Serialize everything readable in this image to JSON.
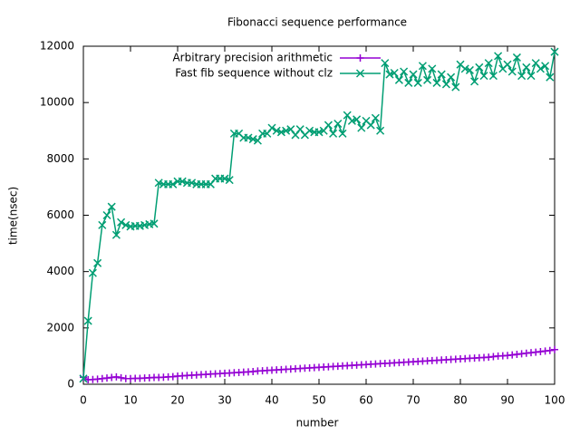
{
  "chart_data": {
    "type": "line",
    "title": "Fibonacci sequence performance",
    "x_label": "number",
    "y_label": "time(nsec)",
    "x": [
      0,
      1,
      2,
      3,
      4,
      5,
      6,
      7,
      8,
      9,
      10,
      11,
      12,
      13,
      14,
      15,
      16,
      17,
      18,
      19,
      20,
      21,
      22,
      23,
      24,
      25,
      26,
      27,
      28,
      29,
      30,
      31,
      32,
      33,
      34,
      35,
      36,
      37,
      38,
      39,
      40,
      41,
      42,
      43,
      44,
      45,
      46,
      47,
      48,
      49,
      50,
      51,
      52,
      53,
      54,
      55,
      56,
      57,
      58,
      59,
      60,
      61,
      62,
      63,
      64,
      65,
      66,
      67,
      68,
      69,
      70,
      71,
      72,
      73,
      74,
      75,
      76,
      77,
      78,
      79,
      80,
      81,
      82,
      83,
      84,
      85,
      86,
      87,
      88,
      89,
      90,
      91,
      92,
      93,
      94,
      95,
      96,
      97,
      98,
      99,
      100
    ],
    "series": [
      {
        "name": "Arbitrary precision arithmetic",
        "color": "#9400d3",
        "marker": "plus",
        "values": [
          250,
          160,
          170,
          180,
          200,
          220,
          240,
          260,
          230,
          200,
          200,
          210,
          210,
          220,
          230,
          240,
          240,
          250,
          260,
          270,
          290,
          300,
          310,
          320,
          330,
          340,
          350,
          360,
          370,
          380,
          390,
          400,
          410,
          420,
          430,
          440,
          450,
          470,
          480,
          490,
          500,
          510,
          520,
          530,
          540,
          550,
          560,
          570,
          580,
          590,
          600,
          610,
          620,
          630,
          640,
          650,
          660,
          670,
          680,
          690,
          700,
          710,
          720,
          730,
          740,
          750,
          760,
          770,
          780,
          790,
          800,
          810,
          820,
          830,
          840,
          850,
          860,
          870,
          880,
          890,
          900,
          910,
          920,
          930,
          940,
          950,
          960,
          980,
          1000,
          1010,
          1020,
          1040,
          1060,
          1080,
          1100,
          1120,
          1140,
          1160,
          1180,
          1200,
          1230
        ]
      },
      {
        "name": "Fast fib sequence without clz",
        "color": "#009e73",
        "marker": "cross",
        "values": [
          200,
          2250,
          3950,
          4300,
          5650,
          6000,
          6300,
          5300,
          5750,
          5650,
          5600,
          5620,
          5620,
          5650,
          5680,
          5700,
          7150,
          7100,
          7100,
          7100,
          7200,
          7200,
          7150,
          7150,
          7100,
          7100,
          7100,
          7100,
          7300,
          7300,
          7300,
          7250,
          8900,
          8900,
          8750,
          8750,
          8700,
          8650,
          8900,
          8900,
          9100,
          9000,
          8950,
          9000,
          9050,
          8850,
          9050,
          8850,
          9000,
          8950,
          8950,
          9000,
          9200,
          8900,
          9250,
          8900,
          9550,
          9350,
          9400,
          9100,
          9350,
          9200,
          9450,
          9000,
          11400,
          11000,
          11050,
          10800,
          11100,
          10700,
          11000,
          10700,
          11300,
          10800,
          11200,
          10700,
          11000,
          10650,
          10900,
          10550,
          11350,
          11200,
          11150,
          10750,
          11250,
          10950,
          11400,
          10950,
          11650,
          11200,
          11350,
          11100,
          11600,
          10950,
          11250,
          10950,
          11400,
          11200,
          11300,
          10900,
          11800
        ]
      }
    ],
    "xlim": [
      0,
      100
    ],
    "xticks": [
      0,
      10,
      20,
      30,
      40,
      50,
      60,
      70,
      80,
      90,
      100
    ],
    "ylim": [
      0,
      12000
    ],
    "yticks": [
      0,
      2000,
      4000,
      6000,
      8000,
      10000,
      12000
    ],
    "grid": false,
    "legend": "top-right"
  }
}
